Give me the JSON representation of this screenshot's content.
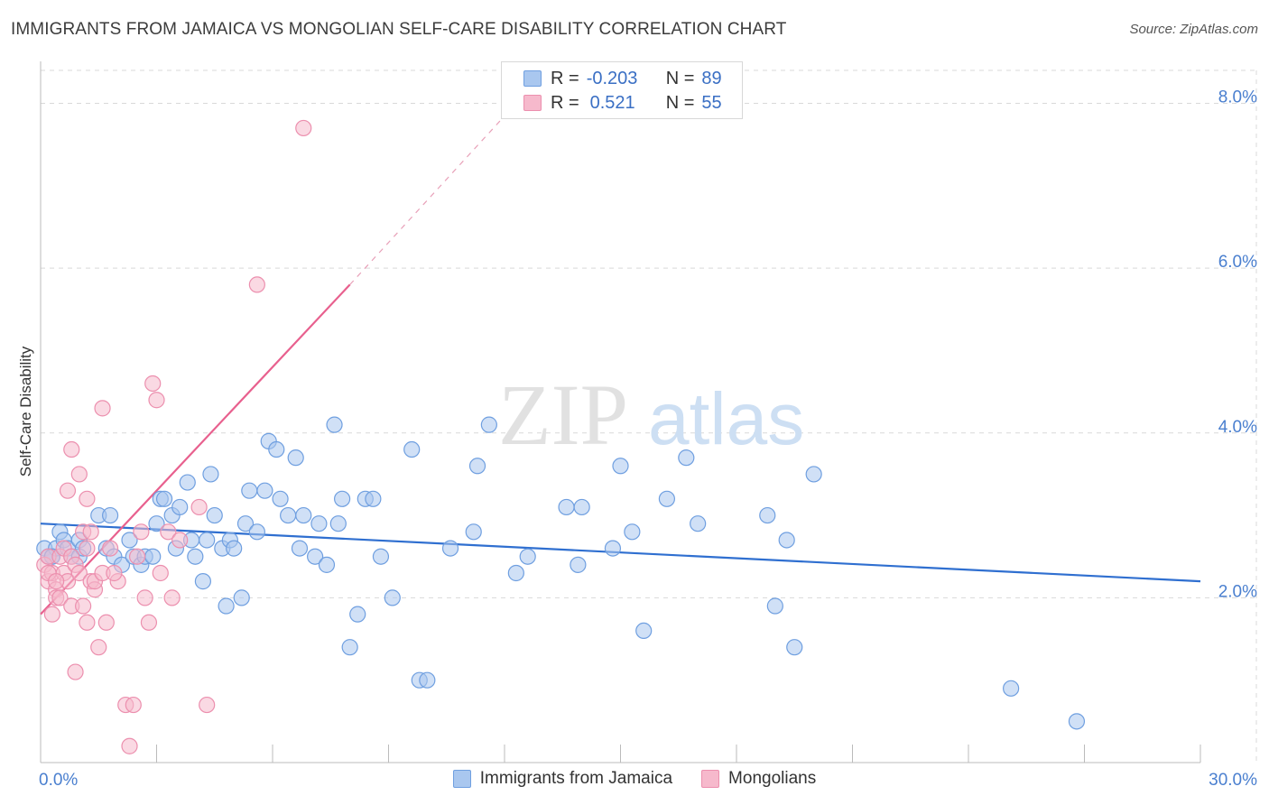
{
  "title": "IMMIGRANTS FROM JAMAICA VS MONGOLIAN SELF-CARE DISABILITY CORRELATION CHART",
  "source": "Source: ZipAtlas.com",
  "watermark": {
    "zip": "ZIP",
    "atlas": "atlas"
  },
  "legend": {
    "rows": [
      {
        "r_label": "R =",
        "r_value": "-0.203",
        "n_label": "N =",
        "n_value": "89"
      },
      {
        "r_label": "R =",
        "r_value": "0.521",
        "n_label": "N =",
        "n_value": "55"
      }
    ]
  },
  "colors": {
    "blue_fill": "#a9c7ef",
    "blue_stroke": "#6f9fe0",
    "blue_line": "#2f6fd0",
    "pink_fill": "#f6b9cc",
    "pink_stroke": "#ec8fae",
    "pink_line": "#e8608e",
    "grid": "#d9d9d9",
    "tick_text": "#4a7fcf"
  },
  "chart_data": {
    "type": "scatter",
    "title": "IMMIGRANTS FROM JAMAICA VS MONGOLIAN SELF-CARE DISABILITY CORRELATION CHART",
    "xlabel": "",
    "ylabel": "Self-Care Disability",
    "xlim": [
      0,
      30
    ],
    "ylim": [
      0,
      8.4
    ],
    "x_tick_labels": [
      "0.0%",
      "30.0%"
    ],
    "y_ticks": [
      2,
      4,
      6,
      8
    ],
    "y_tick_labels": [
      "2.0%",
      "4.0%",
      "6.0%",
      "8.0%"
    ],
    "grid": true,
    "legend_position": "bottom-center",
    "series": [
      {
        "name": "Immigrants from Jamaica",
        "color": "#a9c7ef",
        "trend": {
          "x": [
            0.0,
            30.0
          ],
          "y": [
            2.9,
            2.2
          ]
        },
        "points": [
          [
            0.1,
            2.6
          ],
          [
            0.2,
            2.5
          ],
          [
            0.3,
            2.5
          ],
          [
            0.4,
            2.6
          ],
          [
            0.5,
            2.8
          ],
          [
            0.6,
            2.7
          ],
          [
            0.7,
            2.6
          ],
          [
            0.8,
            2.5
          ],
          [
            1.0,
            2.5
          ],
          [
            1.0,
            2.7
          ],
          [
            1.1,
            2.6
          ],
          [
            1.5,
            3.0
          ],
          [
            1.7,
            2.6
          ],
          [
            1.8,
            3.0
          ],
          [
            1.9,
            2.5
          ],
          [
            2.1,
            2.4
          ],
          [
            2.3,
            2.7
          ],
          [
            2.4,
            2.5
          ],
          [
            2.6,
            2.4
          ],
          [
            2.7,
            2.5
          ],
          [
            2.9,
            2.5
          ],
          [
            3.0,
            2.9
          ],
          [
            3.1,
            3.2
          ],
          [
            3.2,
            3.2
          ],
          [
            3.4,
            3.0
          ],
          [
            3.5,
            2.6
          ],
          [
            3.6,
            3.1
          ],
          [
            3.8,
            3.4
          ],
          [
            3.9,
            2.7
          ],
          [
            4.0,
            2.5
          ],
          [
            4.2,
            2.2
          ],
          [
            4.3,
            2.7
          ],
          [
            4.4,
            3.5
          ],
          [
            4.5,
            3.0
          ],
          [
            4.7,
            2.6
          ],
          [
            4.8,
            1.9
          ],
          [
            4.9,
            2.7
          ],
          [
            5.0,
            2.6
          ],
          [
            5.2,
            2.0
          ],
          [
            5.3,
            2.9
          ],
          [
            5.4,
            3.3
          ],
          [
            5.6,
            2.8
          ],
          [
            5.8,
            3.3
          ],
          [
            5.9,
            3.9
          ],
          [
            6.1,
            3.8
          ],
          [
            6.2,
            3.2
          ],
          [
            6.4,
            3.0
          ],
          [
            6.6,
            3.7
          ],
          [
            6.7,
            2.6
          ],
          [
            6.8,
            3.0
          ],
          [
            7.1,
            2.5
          ],
          [
            7.2,
            2.9
          ],
          [
            7.4,
            2.4
          ],
          [
            7.6,
            4.1
          ],
          [
            7.7,
            2.9
          ],
          [
            7.8,
            3.2
          ],
          [
            8.0,
            1.4
          ],
          [
            8.2,
            1.8
          ],
          [
            8.4,
            3.2
          ],
          [
            8.6,
            3.2
          ],
          [
            8.8,
            2.5
          ],
          [
            9.1,
            2.0
          ],
          [
            9.6,
            3.8
          ],
          [
            9.8,
            1.0
          ],
          [
            10.0,
            1.0
          ],
          [
            10.6,
            2.6
          ],
          [
            11.2,
            2.8
          ],
          [
            11.3,
            3.6
          ],
          [
            11.6,
            4.1
          ],
          [
            12.3,
            2.3
          ],
          [
            12.6,
            2.5
          ],
          [
            13.6,
            3.1
          ],
          [
            13.9,
            2.4
          ],
          [
            14.0,
            3.1
          ],
          [
            14.8,
            2.6
          ],
          [
            15.0,
            3.6
          ],
          [
            15.3,
            2.8
          ],
          [
            15.6,
            1.6
          ],
          [
            16.2,
            3.2
          ],
          [
            16.7,
            3.7
          ],
          [
            17.0,
            2.9
          ],
          [
            18.8,
            3.0
          ],
          [
            19.0,
            1.9
          ],
          [
            19.3,
            2.7
          ],
          [
            19.5,
            1.4
          ],
          [
            20.0,
            3.5
          ],
          [
            25.1,
            0.9
          ],
          [
            26.8,
            0.5
          ],
          [
            0.3,
            2.5
          ]
        ]
      },
      {
        "name": "Mongolians",
        "color": "#f6b9cc",
        "trend": {
          "x": [
            0.0,
            8.0
          ],
          "y": [
            1.8,
            5.8
          ]
        },
        "trend_dashed": {
          "x": [
            8.0,
            12.3
          ],
          "y": [
            5.8,
            8.0
          ]
        },
        "points": [
          [
            0.1,
            2.4
          ],
          [
            0.2,
            2.2
          ],
          [
            0.2,
            2.5
          ],
          [
            0.3,
            1.8
          ],
          [
            0.3,
            2.3
          ],
          [
            0.4,
            2.1
          ],
          [
            0.4,
            2.0
          ],
          [
            0.5,
            2.5
          ],
          [
            0.5,
            2.0
          ],
          [
            0.6,
            2.6
          ],
          [
            0.6,
            2.3
          ],
          [
            0.7,
            2.2
          ],
          [
            0.8,
            2.5
          ],
          [
            0.8,
            1.9
          ],
          [
            0.9,
            2.4
          ],
          [
            1.0,
            2.3
          ],
          [
            1.1,
            2.8
          ],
          [
            1.2,
            2.6
          ],
          [
            1.3,
            2.2
          ],
          [
            1.4,
            2.1
          ],
          [
            0.7,
            3.3
          ],
          [
            0.8,
            3.8
          ],
          [
            1.0,
            3.5
          ],
          [
            1.2,
            3.2
          ],
          [
            1.3,
            2.8
          ],
          [
            1.4,
            2.2
          ],
          [
            1.5,
            1.4
          ],
          [
            1.6,
            2.3
          ],
          [
            1.7,
            1.7
          ],
          [
            1.8,
            2.6
          ],
          [
            2.0,
            2.2
          ],
          [
            2.2,
            0.7
          ],
          [
            2.3,
            0.2
          ],
          [
            2.4,
            0.7
          ],
          [
            2.5,
            2.5
          ],
          [
            2.6,
            2.8
          ],
          [
            2.7,
            2.0
          ],
          [
            2.8,
            1.7
          ],
          [
            2.9,
            4.6
          ],
          [
            3.0,
            4.4
          ],
          [
            3.1,
            2.3
          ],
          [
            3.3,
            2.8
          ],
          [
            3.4,
            2.0
          ],
          [
            3.6,
            2.7
          ],
          [
            4.1,
            3.1
          ],
          [
            4.3,
            0.7
          ],
          [
            5.6,
            5.8
          ],
          [
            6.8,
            7.7
          ],
          [
            0.9,
            1.1
          ],
          [
            1.1,
            1.9
          ],
          [
            1.2,
            1.7
          ],
          [
            1.6,
            4.3
          ],
          [
            1.9,
            2.3
          ],
          [
            0.2,
            2.3
          ],
          [
            0.4,
            2.2
          ]
        ]
      }
    ]
  }
}
